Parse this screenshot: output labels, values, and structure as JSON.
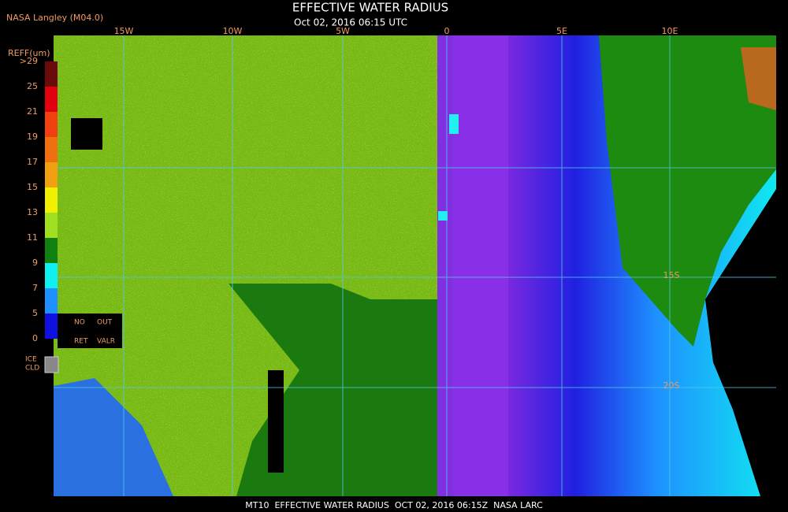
{
  "header": {
    "source": "NASA Langley (M04.0)",
    "title": "EFFECTIVE WATER RADIUS",
    "datetime": "Oct 02, 2016 06:15 UTC"
  },
  "longitude_labels": [
    "15W",
    "10W",
    "5W",
    "0",
    "5E",
    "10E"
  ],
  "latitude_labels": [
    "15S",
    "20S"
  ],
  "legend": {
    "title": "REFF(um)",
    "levels": [
      ">29",
      "25",
      "21",
      "19",
      "17",
      "15",
      "13",
      "11",
      "9",
      "7",
      "5",
      "0"
    ],
    "no_ret": [
      "NO",
      "RET"
    ],
    "out_valr": [
      "OUT",
      "VALR"
    ],
    "ice_cld": [
      "ICE",
      "CLD"
    ]
  },
  "footer": "MT10  EFFECTIVE WATER RADIUS  OCT 02, 2016 06:15Z  NASA LARC"
}
